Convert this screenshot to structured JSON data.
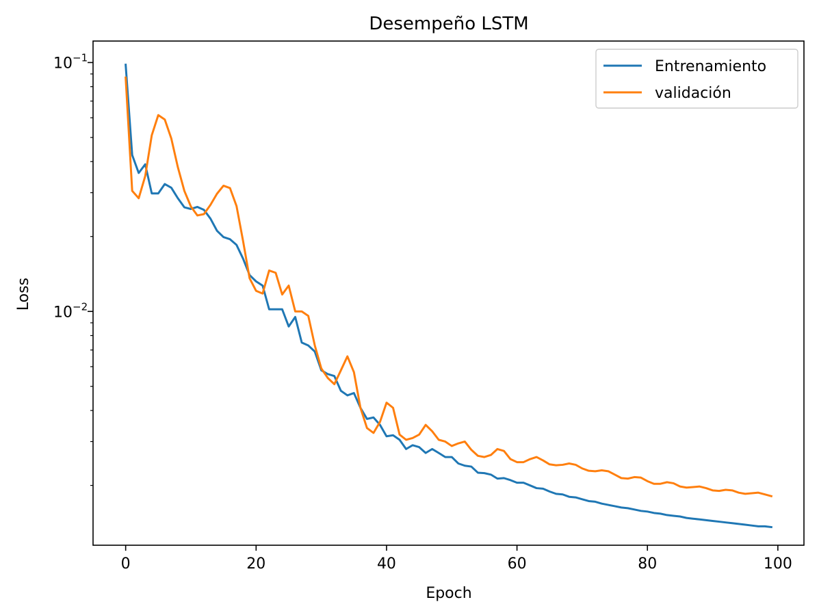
{
  "chart_data": {
    "type": "line",
    "title": "Desempeño LSTM",
    "xlabel": "Epoch",
    "ylabel": "Loss",
    "xlim": [
      -5,
      104
    ],
    "ylim": [
      0.00115,
      0.122
    ],
    "yscale": "log",
    "grid": false,
    "legend_position": "top-right",
    "x_ticks": [
      0,
      20,
      40,
      60,
      80,
      100
    ],
    "y_ticks": [
      {
        "value": 0.1,
        "base": "10",
        "exp": "−1"
      },
      {
        "value": 0.01,
        "base": "10",
        "exp": "−2"
      }
    ],
    "x": [
      0,
      1,
      2,
      3,
      4,
      5,
      6,
      7,
      8,
      9,
      10,
      11,
      12,
      13,
      14,
      15,
      16,
      17,
      18,
      19,
      20,
      21,
      22,
      23,
      24,
      25,
      26,
      27,
      28,
      29,
      30,
      31,
      32,
      33,
      34,
      35,
      36,
      37,
      38,
      39,
      40,
      41,
      42,
      43,
      44,
      45,
      46,
      47,
      48,
      49,
      50,
      51,
      52,
      53,
      54,
      55,
      56,
      57,
      58,
      59,
      60,
      61,
      62,
      63,
      64,
      65,
      66,
      67,
      68,
      69,
      70,
      71,
      72,
      73,
      74,
      75,
      76,
      77,
      78,
      79,
      80,
      81,
      82,
      83,
      84,
      85,
      86,
      87,
      88,
      89,
      90,
      91,
      92,
      93,
      94,
      95,
      96,
      97,
      98,
      99
    ],
    "series": [
      {
        "name": "Entrenamiento",
        "color": "#1f77b4",
        "values": [
          0.098,
          0.0425,
          0.036,
          0.039,
          0.0298,
          0.0298,
          0.0325,
          0.0314,
          0.0285,
          0.0262,
          0.0258,
          0.0263,
          0.0256,
          0.0236,
          0.0211,
          0.0199,
          0.0195,
          0.0185,
          0.0163,
          0.014,
          0.0132,
          0.0127,
          0.0102,
          0.0102,
          0.0102,
          0.0087,
          0.0095,
          0.0075,
          0.0073,
          0.0069,
          0.0058,
          0.0056,
          0.0055,
          0.0048,
          0.0046,
          0.0047,
          0.0041,
          0.0037,
          0.00375,
          0.0035,
          0.00315,
          0.00318,
          0.00305,
          0.0028,
          0.0029,
          0.00285,
          0.0027,
          0.0028,
          0.0027,
          0.0026,
          0.0026,
          0.00245,
          0.0024,
          0.00238,
          0.00225,
          0.00224,
          0.00221,
          0.00213,
          0.00214,
          0.0021,
          0.00205,
          0.00205,
          0.002,
          0.00195,
          0.00194,
          0.00189,
          0.00185,
          0.00184,
          0.0018,
          0.00179,
          0.00176,
          0.00173,
          0.00172,
          0.00169,
          0.00167,
          0.00165,
          0.00163,
          0.00162,
          0.0016,
          0.00158,
          0.00157,
          0.00155,
          0.00154,
          0.00152,
          0.00151,
          0.0015,
          0.00148,
          0.00147,
          0.00146,
          0.00145,
          0.00144,
          0.00143,
          0.00142,
          0.00141,
          0.0014,
          0.00139,
          0.00138,
          0.00137,
          0.00137,
          0.00136
        ]
      },
      {
        "name": "validación",
        "color": "#ff7f0e",
        "values": [
          0.087,
          0.0305,
          0.0285,
          0.035,
          0.051,
          0.0615,
          0.059,
          0.0495,
          0.038,
          0.0305,
          0.0264,
          0.0243,
          0.0246,
          0.0268,
          0.0297,
          0.032,
          0.0313,
          0.0265,
          0.0192,
          0.0136,
          0.0121,
          0.0118,
          0.0146,
          0.0143,
          0.0117,
          0.0127,
          0.01,
          0.01,
          0.0096,
          0.0073,
          0.0059,
          0.0054,
          0.0051,
          0.0058,
          0.0066,
          0.0057,
          0.0041,
          0.0034,
          0.00325,
          0.0036,
          0.0043,
          0.0041,
          0.0032,
          0.00305,
          0.0031,
          0.0032,
          0.0035,
          0.0033,
          0.00305,
          0.003,
          0.00288,
          0.00295,
          0.003,
          0.00278,
          0.00263,
          0.0026,
          0.00265,
          0.0028,
          0.00275,
          0.00255,
          0.00248,
          0.00248,
          0.00255,
          0.0026,
          0.00252,
          0.00243,
          0.00241,
          0.00242,
          0.00245,
          0.00242,
          0.00234,
          0.00229,
          0.00228,
          0.0023,
          0.00228,
          0.00221,
          0.00214,
          0.00213,
          0.00216,
          0.00215,
          0.00208,
          0.00203,
          0.00203,
          0.00206,
          0.00204,
          0.00198,
          0.00196,
          0.00197,
          0.00198,
          0.00195,
          0.00191,
          0.0019,
          0.00192,
          0.00191,
          0.00187,
          0.00185,
          0.00186,
          0.00187,
          0.00184,
          0.00181
        ]
      }
    ]
  }
}
